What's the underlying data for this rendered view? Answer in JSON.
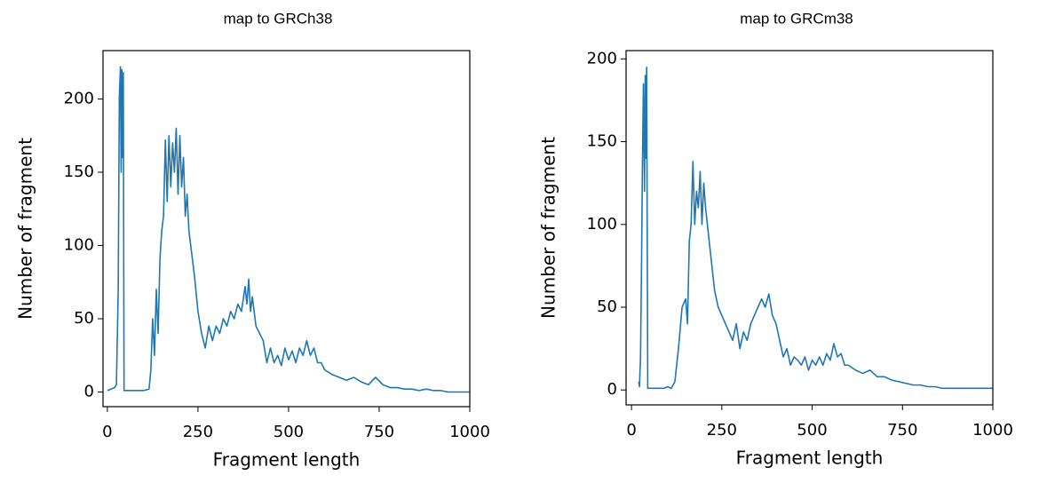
{
  "chart_data": [
    {
      "type": "line",
      "title": "map to GRCh38",
      "xlabel": "Fragment length",
      "ylabel": "Number of fragment",
      "x": [
        0,
        10,
        20,
        25,
        30,
        33,
        36,
        38,
        40,
        42,
        44,
        46,
        50,
        60,
        80,
        100,
        115,
        120,
        125,
        130,
        135,
        140,
        145,
        150,
        155,
        160,
        165,
        170,
        175,
        180,
        185,
        190,
        195,
        200,
        205,
        210,
        215,
        220,
        225,
        230,
        240,
        250,
        260,
        270,
        280,
        290,
        300,
        310,
        320,
        330,
        340,
        350,
        360,
        370,
        380,
        385,
        390,
        395,
        400,
        410,
        420,
        430,
        440,
        450,
        460,
        470,
        480,
        490,
        500,
        510,
        520,
        530,
        540,
        550,
        560,
        570,
        580,
        590,
        600,
        620,
        640,
        660,
        680,
        700,
        720,
        740,
        760,
        780,
        800,
        820,
        840,
        860,
        880,
        900,
        920,
        940,
        960,
        980,
        1000
      ],
      "values": [
        1,
        2,
        3,
        5,
        70,
        200,
        222,
        150,
        220,
        160,
        218,
        1,
        1,
        1,
        1,
        1,
        2,
        15,
        50,
        25,
        70,
        40,
        90,
        110,
        120,
        172,
        130,
        175,
        140,
        170,
        150,
        180,
        135,
        175,
        140,
        160,
        120,
        135,
        110,
        100,
        80,
        55,
        40,
        30,
        45,
        35,
        45,
        40,
        50,
        45,
        55,
        50,
        60,
        55,
        72,
        60,
        77,
        55,
        65,
        45,
        40,
        35,
        20,
        30,
        20,
        25,
        18,
        30,
        22,
        28,
        20,
        30,
        25,
        35,
        25,
        30,
        20,
        20,
        15,
        12,
        10,
        8,
        10,
        7,
        5,
        10,
        5,
        3,
        3,
        2,
        2,
        1,
        2,
        1,
        1,
        0,
        0,
        0,
        0
      ],
      "color": "#1f77b4",
      "xlim": [
        -12,
        1000
      ],
      "ylim": [
        -10,
        233
      ],
      "xticks": [
        0,
        250,
        500,
        750,
        1000
      ],
      "yticks": [
        0,
        50,
        100,
        150,
        200
      ]
    },
    {
      "type": "line",
      "title": "map to GRCm38",
      "xlabel": "Fragment length",
      "ylabel": "Number of fragment",
      "x": [
        20,
        22,
        25,
        28,
        30,
        33,
        36,
        38,
        40,
        42,
        45,
        50,
        70,
        90,
        100,
        110,
        120,
        130,
        140,
        150,
        155,
        160,
        165,
        170,
        175,
        180,
        185,
        190,
        195,
        200,
        205,
        210,
        220,
        230,
        240,
        250,
        260,
        270,
        280,
        290,
        300,
        310,
        320,
        330,
        340,
        350,
        360,
        370,
        380,
        390,
        400,
        410,
        420,
        430,
        440,
        450,
        460,
        470,
        480,
        490,
        500,
        510,
        520,
        530,
        540,
        550,
        560,
        570,
        580,
        590,
        600,
        620,
        640,
        660,
        680,
        700,
        720,
        740,
        760,
        780,
        800,
        820,
        840,
        860,
        880,
        900,
        920,
        940,
        960,
        980,
        1000
      ],
      "values": [
        5,
        2,
        20,
        80,
        130,
        185,
        120,
        190,
        140,
        195,
        1,
        1,
        1,
        1,
        2,
        1,
        5,
        25,
        50,
        55,
        40,
        90,
        100,
        138,
        100,
        120,
        110,
        132,
        100,
        125,
        110,
        100,
        80,
        60,
        50,
        45,
        40,
        35,
        30,
        40,
        25,
        35,
        30,
        40,
        45,
        50,
        55,
        50,
        58,
        45,
        40,
        30,
        20,
        25,
        15,
        20,
        18,
        15,
        20,
        12,
        18,
        15,
        20,
        15,
        22,
        18,
        28,
        20,
        22,
        15,
        15,
        12,
        10,
        12,
        8,
        8,
        6,
        5,
        4,
        3,
        3,
        2,
        2,
        1,
        1,
        1,
        1,
        1,
        1,
        1,
        1
      ],
      "color": "#1f77b4",
      "xlim": [
        -15,
        1000
      ],
      "ylim": [
        -9,
        205
      ],
      "xticks": [
        0,
        250,
        500,
        750,
        1000
      ],
      "yticks": [
        0,
        50,
        100,
        150,
        200
      ]
    }
  ]
}
